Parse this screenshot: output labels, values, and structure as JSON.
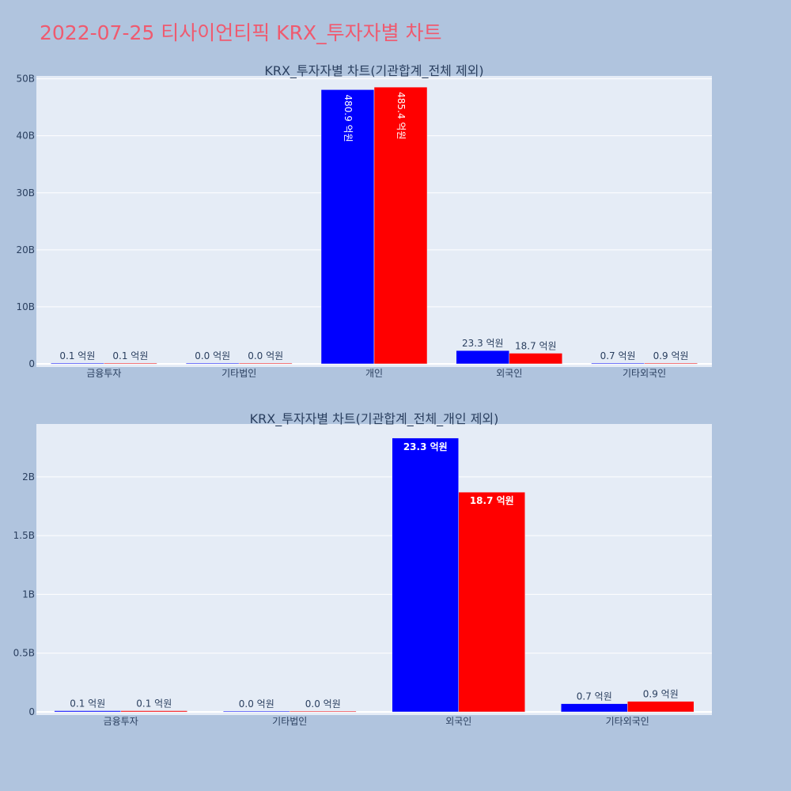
{
  "page_title": "2022-07-25 티사이언티픽 KRX_투자자별 차트",
  "colors": {
    "background": "#b0c4de",
    "plot_bg": "#e5ecf6",
    "title": "#ef5a6f",
    "series_a": "#0000ff",
    "series_b": "#ff0000",
    "text": "#2a3f5f",
    "grid": "#ffffff"
  },
  "chart_data": [
    {
      "type": "bar",
      "title": "KRX_투자자별 차트(기관합계_전체 제외)",
      "categories": [
        "금융투자",
        "기타법인",
        "개인",
        "외국인",
        "기타외국인"
      ],
      "ylim": [
        0,
        50.5
      ],
      "yticks": [
        0,
        10,
        20,
        30,
        40,
        50
      ],
      "ytick_labels": [
        "0",
        "10B",
        "20B",
        "30B",
        "40B",
        "50B"
      ],
      "label_mode": "rotated_inside_for_tall",
      "series": [
        {
          "color": "#0000ff",
          "values": [
            0.01,
            0.0,
            48.09,
            2.33,
            0.07
          ],
          "labels": [
            "0.1 억원",
            "0.0 억원",
            "480.9 억원",
            "23.3 억원",
            "0.7 억원"
          ]
        },
        {
          "color": "#ff0000",
          "values": [
            0.01,
            0.0,
            48.54,
            1.87,
            0.09
          ],
          "labels": [
            "0.1 억원",
            "0.0 억원",
            "485.4 억원",
            "18.7 억원",
            "0.9 억원"
          ]
        }
      ]
    },
    {
      "type": "bar",
      "title": "KRX_투자자별 차트(기관합계_전체_개인 제외)",
      "categories": [
        "금융투자",
        "기타법인",
        "외국인",
        "기타외국인"
      ],
      "ylim": [
        0,
        2.45
      ],
      "yticks": [
        0,
        0.5,
        1,
        1.5,
        2
      ],
      "ytick_labels": [
        "0",
        "0.5B",
        "1B",
        "1.5B",
        "2B"
      ],
      "label_mode": "inside_bold_for_tall",
      "series": [
        {
          "color": "#0000ff",
          "values": [
            0.01,
            0.0,
            2.33,
            0.07
          ],
          "labels": [
            "0.1 억원",
            "0.0 억원",
            "23.3 억원",
            "0.7 억원"
          ]
        },
        {
          "color": "#ff0000",
          "values": [
            0.01,
            0.0,
            1.87,
            0.09
          ],
          "labels": [
            "0.1 억원",
            "0.0 억원",
            "18.7 억원",
            "0.9 억원"
          ]
        }
      ]
    }
  ]
}
